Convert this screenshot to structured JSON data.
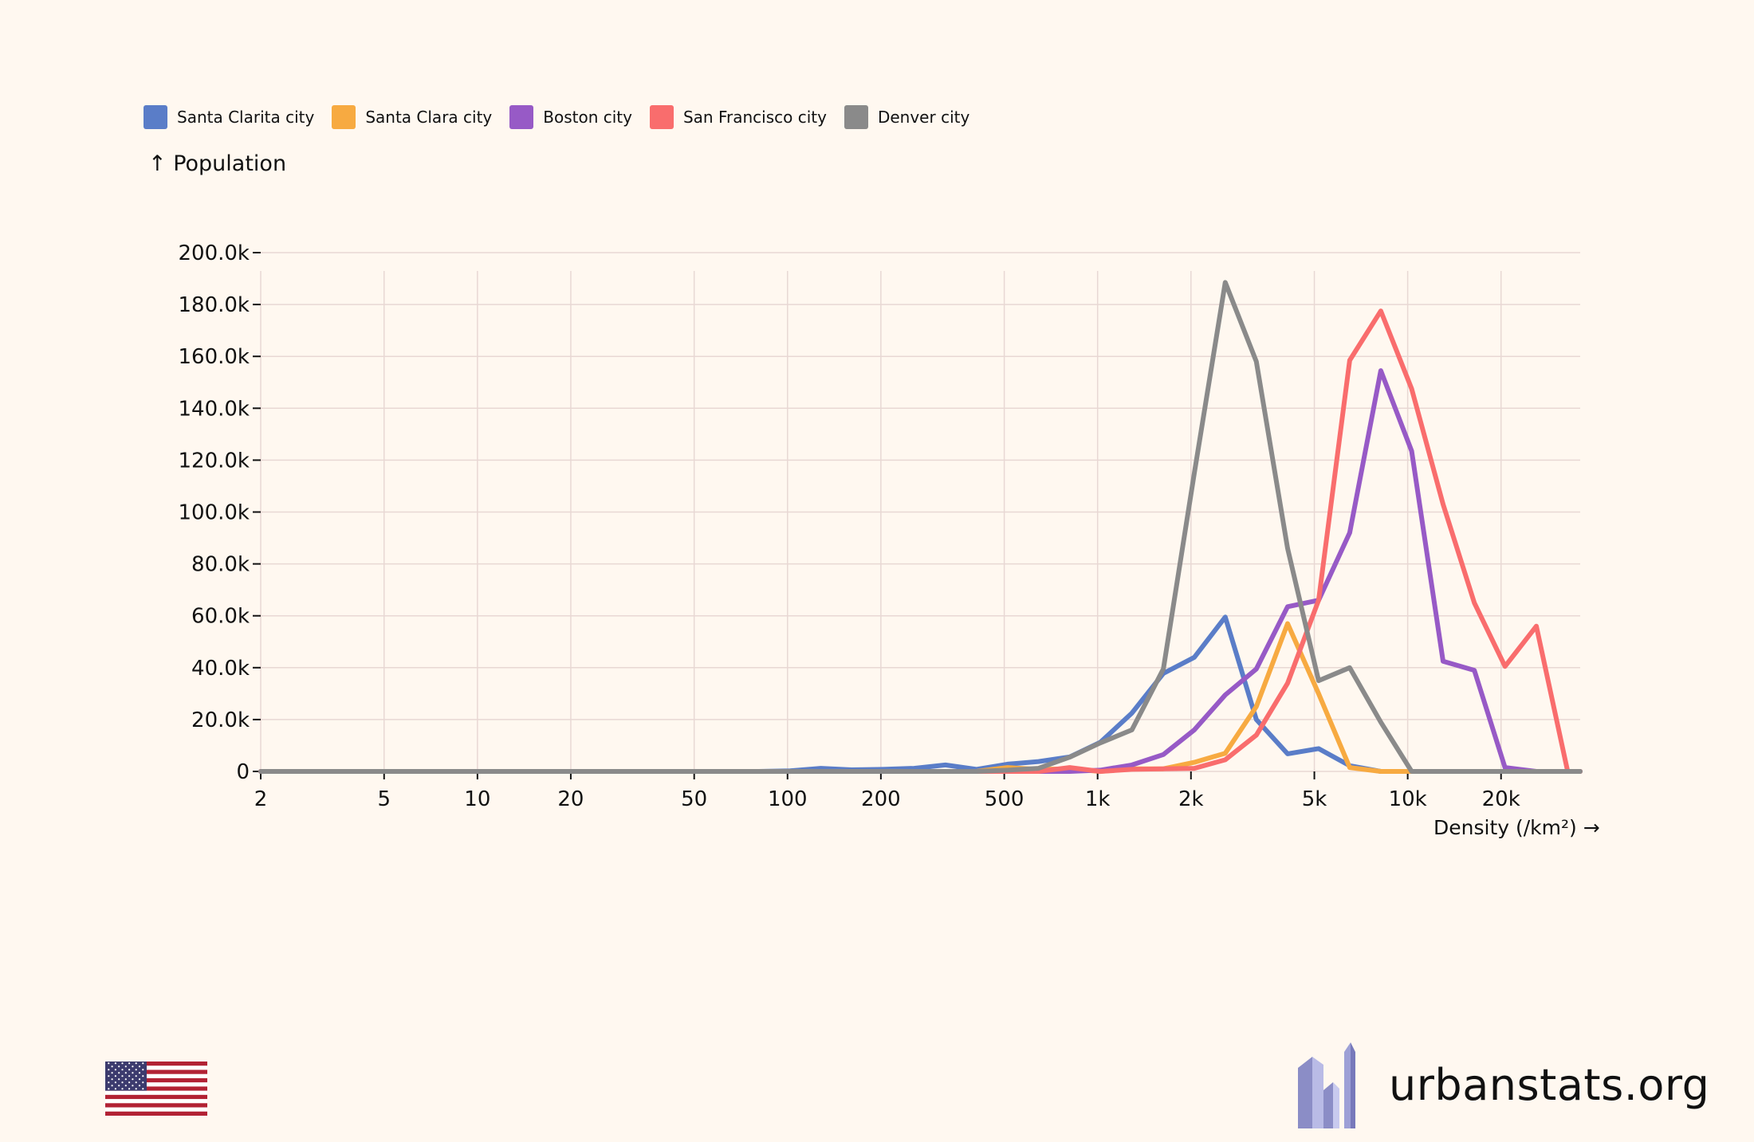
{
  "legend": [
    {
      "name": "Santa Clarita city",
      "color": "#5a7dc8"
    },
    {
      "name": "Santa Clara city",
      "color": "#f7aa41"
    },
    {
      "name": "Boston city",
      "color": "#975ac6"
    },
    {
      "name": "San Francisco city",
      "color": "#f96d6d"
    },
    {
      "name": "Denver city",
      "color": "#8a8a8a"
    }
  ],
  "brand": {
    "text": "urbanstats.org"
  },
  "flag": {
    "icon": "us-flag-icon"
  },
  "chart_data": {
    "type": "line",
    "title": "",
    "xlabel": "Density (/km²) →",
    "ylabel": "↑ Population",
    "x_scale": "log",
    "xlim": [
      2,
      36000
    ],
    "ylim": [
      0,
      200000
    ],
    "x_ticks": [
      {
        "value": 2,
        "label": "2"
      },
      {
        "value": 5,
        "label": "5"
      },
      {
        "value": 10,
        "label": "10"
      },
      {
        "value": 20,
        "label": "20"
      },
      {
        "value": 50,
        "label": "50"
      },
      {
        "value": 100,
        "label": "100"
      },
      {
        "value": 200,
        "label": "200"
      },
      {
        "value": 500,
        "label": "500"
      },
      {
        "value": 1000,
        "label": "1k"
      },
      {
        "value": 2000,
        "label": "2k"
      },
      {
        "value": 5000,
        "label": "5k"
      },
      {
        "value": 10000,
        "label": "10k"
      },
      {
        "value": 20000,
        "label": "20k"
      }
    ],
    "y_ticks": [
      {
        "value": 0,
        "label": "0"
      },
      {
        "value": 20000,
        "label": "20.0k"
      },
      {
        "value": 40000,
        "label": "40.0k"
      },
      {
        "value": 60000,
        "label": "60.0k"
      },
      {
        "value": 80000,
        "label": "80.0k"
      },
      {
        "value": 100000,
        "label": "100.0k"
      },
      {
        "value": 120000,
        "label": "120.0k"
      },
      {
        "value": 140000,
        "label": "140.0k"
      },
      {
        "value": 160000,
        "label": "160.0k"
      },
      {
        "value": 180000,
        "label": "180.0k"
      },
      {
        "value": 200000,
        "label": "200.0k"
      }
    ],
    "grid": true,
    "legend_position": "top-left",
    "x": [
      2,
      2.52,
      3.17,
      4,
      5.04,
      6.35,
      8,
      10.1,
      12.7,
      16,
      20.2,
      25.4,
      32,
      40.3,
      50.8,
      64,
      80.6,
      102,
      128,
      161,
      203,
      256,
      323,
      406,
      512,
      645,
      813,
      1020,
      1290,
      1630,
      2050,
      2580,
      3250,
      4100,
      5160,
      6500,
      8190,
      10300,
      13000,
      16400,
      20600,
      26000,
      32800,
      36000
    ],
    "series": [
      {
        "name": "Santa Clarita city",
        "values": [
          0,
          0,
          0,
          0,
          0,
          0,
          0,
          0,
          0,
          0,
          0,
          0,
          0,
          0,
          0,
          0,
          0,
          200,
          1200,
          600,
          800,
          1200,
          2500,
          800,
          2800,
          3800,
          5600,
          11200,
          22500,
          37800,
          44000,
          59500,
          20000,
          6800,
          8800,
          2200,
          0,
          0,
          0,
          0,
          0,
          0,
          0,
          0
        ]
      },
      {
        "name": "Santa Clara city",
        "values": [
          0,
          0,
          0,
          0,
          0,
          0,
          0,
          0,
          0,
          0,
          0,
          0,
          0,
          0,
          0,
          0,
          0,
          0,
          0,
          0,
          0,
          0,
          0,
          0,
          1500,
          800,
          1000,
          0,
          1000,
          1000,
          3500,
          7000,
          25000,
          57000,
          30000,
          1500,
          0,
          0,
          0,
          0,
          0,
          0,
          0,
          0
        ]
      },
      {
        "name": "Boston city",
        "values": [
          0,
          0,
          0,
          0,
          0,
          0,
          0,
          0,
          0,
          0,
          0,
          0,
          0,
          0,
          0,
          0,
          0,
          0,
          0,
          0,
          0,
          0,
          0,
          0,
          0,
          0,
          0,
          500,
          2500,
          6500,
          16000,
          29500,
          39500,
          63500,
          66000,
          92000,
          154500,
          123500,
          42500,
          39000,
          1500,
          0,
          0,
          0
        ]
      },
      {
        "name": "San Francisco city",
        "values": [
          0,
          0,
          0,
          0,
          0,
          0,
          0,
          0,
          0,
          0,
          0,
          0,
          0,
          0,
          0,
          0,
          0,
          0,
          0,
          0,
          0,
          0,
          0,
          0,
          0,
          0,
          1500,
          0,
          800,
          1000,
          1200,
          4500,
          14000,
          34000,
          66000,
          158500,
          177500,
          147500,
          103000,
          65000,
          40500,
          56000,
          0,
          0
        ]
      },
      {
        "name": "Denver city",
        "values": [
          0,
          0,
          0,
          0,
          0,
          0,
          0,
          0,
          0,
          0,
          0,
          0,
          0,
          0,
          0,
          0,
          0,
          0,
          0,
          0,
          0,
          0,
          0,
          0,
          500,
          1200,
          5500,
          11000,
          16000,
          39500,
          115000,
          188500,
          158000,
          86000,
          35000,
          40000,
          19000,
          0,
          0,
          0,
          0,
          0,
          0,
          0
        ]
      }
    ]
  }
}
